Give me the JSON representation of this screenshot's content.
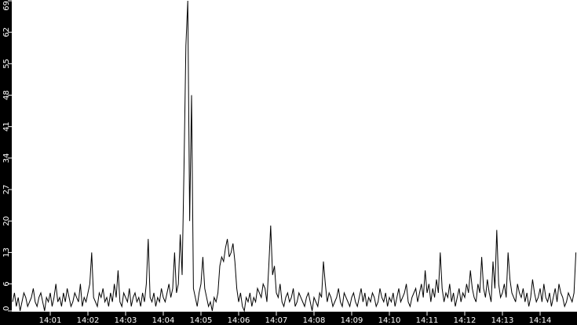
{
  "colors": {
    "background": "#000000",
    "plot_background": "#ffffff",
    "line": "#000000",
    "axis_text": "#ffffff"
  },
  "chart_data": {
    "type": "line",
    "title": "",
    "xlabel": "",
    "ylabel": "",
    "ylim": [
      0,
      69
    ],
    "xlim": [
      "14:00:00",
      "14:15:00"
    ],
    "grid": false,
    "y_ticks": [
      0,
      6,
      13,
      20,
      27,
      34,
      41,
      48,
      55,
      62,
      69
    ],
    "x_ticks": [
      "14:01",
      "14:02",
      "14:03",
      "14:04",
      "14:05",
      "14:06",
      "14:07",
      "14:08",
      "14:09",
      "14:10",
      "14:11",
      "14:12",
      "14:13",
      "14:14"
    ],
    "start_time": "14:00:00",
    "sample_interval_seconds": 3,
    "values": [
      2,
      4,
      1,
      3,
      0,
      2,
      4,
      3,
      1,
      2,
      3,
      5,
      2,
      1,
      3,
      4,
      2,
      0,
      3,
      2,
      4,
      1,
      3,
      6,
      2,
      3,
      1,
      4,
      2,
      5,
      3,
      1,
      2,
      4,
      3,
      2,
      6,
      1,
      3,
      2,
      4,
      6,
      13,
      3,
      2,
      1,
      4,
      3,
      5,
      2,
      3,
      1,
      4,
      2,
      6,
      3,
      9,
      2,
      1,
      4,
      3,
      2,
      5,
      1,
      3,
      4,
      2,
      3,
      1,
      4,
      2,
      6,
      16,
      3,
      2,
      4,
      1,
      3,
      2,
      5,
      3,
      2,
      4,
      6,
      3,
      5,
      13,
      4,
      6,
      17,
      8,
      32,
      59,
      69,
      20,
      48,
      5,
      3,
      1,
      4,
      6,
      12,
      5,
      3,
      1,
      2,
      0,
      3,
      2,
      4,
      10,
      12,
      11,
      14,
      16,
      12,
      13,
      15,
      11,
      5,
      2,
      4,
      1,
      0,
      3,
      2,
      4,
      1,
      3,
      2,
      5,
      4,
      3,
      6,
      5,
      2,
      10,
      19,
      8,
      10,
      4,
      3,
      6,
      2,
      1,
      3,
      4,
      2,
      3,
      5,
      1,
      2,
      4,
      3,
      2,
      1,
      3,
      4,
      2,
      0,
      3,
      2,
      1,
      4,
      3,
      11,
      6,
      2,
      4,
      3,
      1,
      2,
      3,
      5,
      2,
      1,
      4,
      3,
      2,
      1,
      3,
      4,
      2,
      1,
      3,
      5,
      2,
      4,
      1,
      3,
      2,
      4,
      3,
      1,
      2,
      5,
      3,
      2,
      4,
      1,
      3,
      2,
      4,
      1,
      3,
      5,
      2,
      3,
      4,
      6,
      2,
      1,
      3,
      4,
      5,
      2,
      4,
      6,
      3,
      9,
      4,
      6,
      2,
      5,
      3,
      7,
      4,
      13,
      5,
      2,
      4,
      3,
      6,
      2,
      4,
      1,
      3,
      5,
      2,
      4,
      3,
      6,
      4,
      9,
      5,
      3,
      2,
      6,
      4,
      12,
      5,
      3,
      7,
      4,
      2,
      11,
      5,
      18,
      6,
      3,
      4,
      6,
      3,
      13,
      7,
      4,
      3,
      2,
      6,
      4,
      3,
      5,
      2,
      4,
      1,
      3,
      7,
      4,
      2,
      3,
      5,
      2,
      6,
      3,
      2,
      4,
      1,
      3,
      5,
      2,
      6,
      4,
      3,
      1,
      2,
      4,
      3,
      2,
      4,
      13
    ]
  }
}
